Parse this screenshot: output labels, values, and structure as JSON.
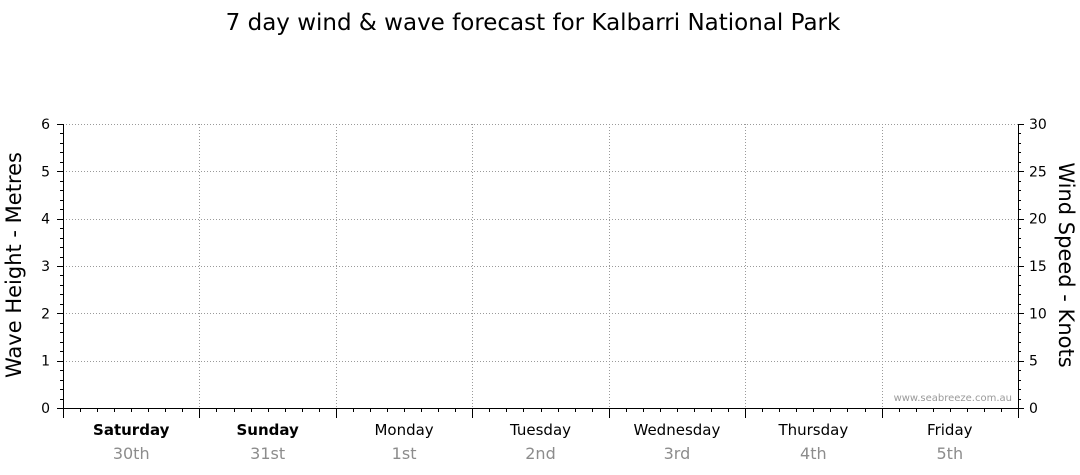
{
  "chart_data": {
    "type": "line",
    "title": "7 day wind & wave forecast for Kalbarri National Park",
    "ylabel_left": "Wave Height - Metres",
    "ylabel_right": "Wind Speed - Knots",
    "ylim_left": [
      0,
      6
    ],
    "yticks_left": [
      0,
      1,
      2,
      3,
      4,
      5,
      6
    ],
    "ylim_right": [
      0,
      30
    ],
    "yticks_right": [
      0,
      5,
      10,
      15,
      20,
      25,
      30
    ],
    "days": [
      {
        "name": "Saturday",
        "date": "30th",
        "bold": true
      },
      {
        "name": "Sunday",
        "date": "31st",
        "bold": true
      },
      {
        "name": "Monday",
        "date": "1st",
        "bold": false
      },
      {
        "name": "Tuesday",
        "date": "2nd",
        "bold": false
      },
      {
        "name": "Wednesday",
        "date": "3rd",
        "bold": false
      },
      {
        "name": "Thursday",
        "date": "4th",
        "bold": false
      },
      {
        "name": "Friday",
        "date": "5th",
        "bold": false
      }
    ],
    "grid": true,
    "series": []
  },
  "watermark": "www.seabreeze.com.au"
}
